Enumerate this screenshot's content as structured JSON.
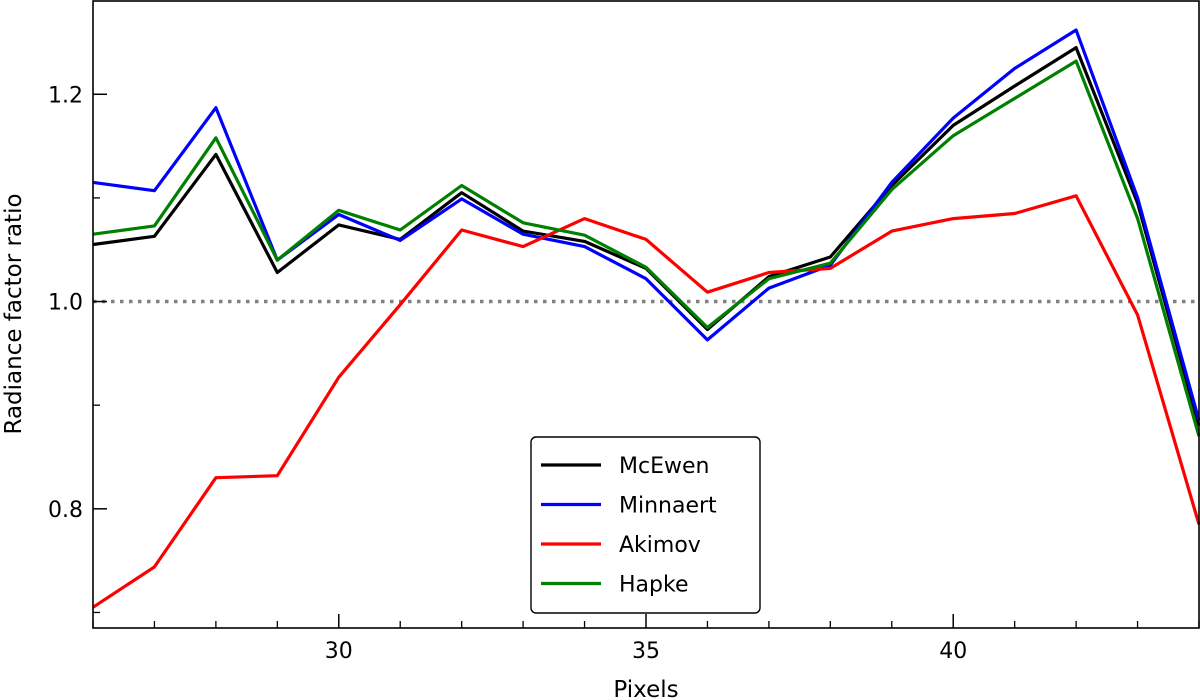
{
  "chart_data": {
    "type": "line",
    "xlabel": "Pixels",
    "ylabel": "Radiance factor ratio",
    "xlim": [
      26,
      44
    ],
    "ylim": [
      0.685,
      1.29
    ],
    "x_ticks_major": [
      30,
      35,
      40
    ],
    "x_ticks_minor": [
      26,
      27,
      28,
      29,
      31,
      32,
      33,
      34,
      36,
      37,
      38,
      39,
      41,
      42,
      43,
      44
    ],
    "y_ticks_major": [
      0.8,
      1.0,
      1.2
    ],
    "y_ticks_minor": [
      0.7,
      0.9,
      1.1
    ],
    "x_tick_labels": [
      "30",
      "35",
      "40"
    ],
    "y_tick_labels": [
      "0.8",
      "1.0",
      "1.2"
    ],
    "reference_line": {
      "y": 1.0,
      "style": "dotted",
      "color": "#808080"
    },
    "grid": false,
    "legend_position": "lower-center",
    "x": [
      26,
      27,
      28,
      29,
      30,
      31,
      32,
      33,
      34,
      35,
      36,
      37,
      38,
      39,
      40,
      41,
      42,
      43,
      44
    ],
    "series": [
      {
        "name": "McEwen",
        "color": "#000000",
        "values": [
          1.055,
          1.063,
          1.142,
          1.028,
          1.074,
          1.06,
          1.105,
          1.068,
          1.058,
          1.032,
          0.973,
          1.024,
          1.043,
          1.112,
          1.17,
          1.208,
          1.245,
          1.095,
          0.88
        ]
      },
      {
        "name": "Minnaert",
        "color": "#0000ff",
        "values": [
          1.115,
          1.107,
          1.187,
          1.04,
          1.084,
          1.059,
          1.099,
          1.065,
          1.053,
          1.022,
          0.963,
          1.013,
          1.035,
          1.115,
          1.177,
          1.225,
          1.262,
          1.1,
          0.885
        ]
      },
      {
        "name": "Akimov",
        "color": "#ff0000",
        "values": [
          0.705,
          0.744,
          0.83,
          0.832,
          0.927,
          0.997,
          1.069,
          1.053,
          1.08,
          1.06,
          1.009,
          1.028,
          1.032,
          1.068,
          1.08,
          1.085,
          1.102,
          0.987,
          0.785
        ]
      },
      {
        "name": "Hapke",
        "color": "#008000",
        "values": [
          1.065,
          1.073,
          1.158,
          1.04,
          1.088,
          1.069,
          1.112,
          1.076,
          1.064,
          1.033,
          0.975,
          1.022,
          1.037,
          1.108,
          1.16,
          1.196,
          1.232,
          1.08,
          0.87
        ]
      }
    ]
  }
}
